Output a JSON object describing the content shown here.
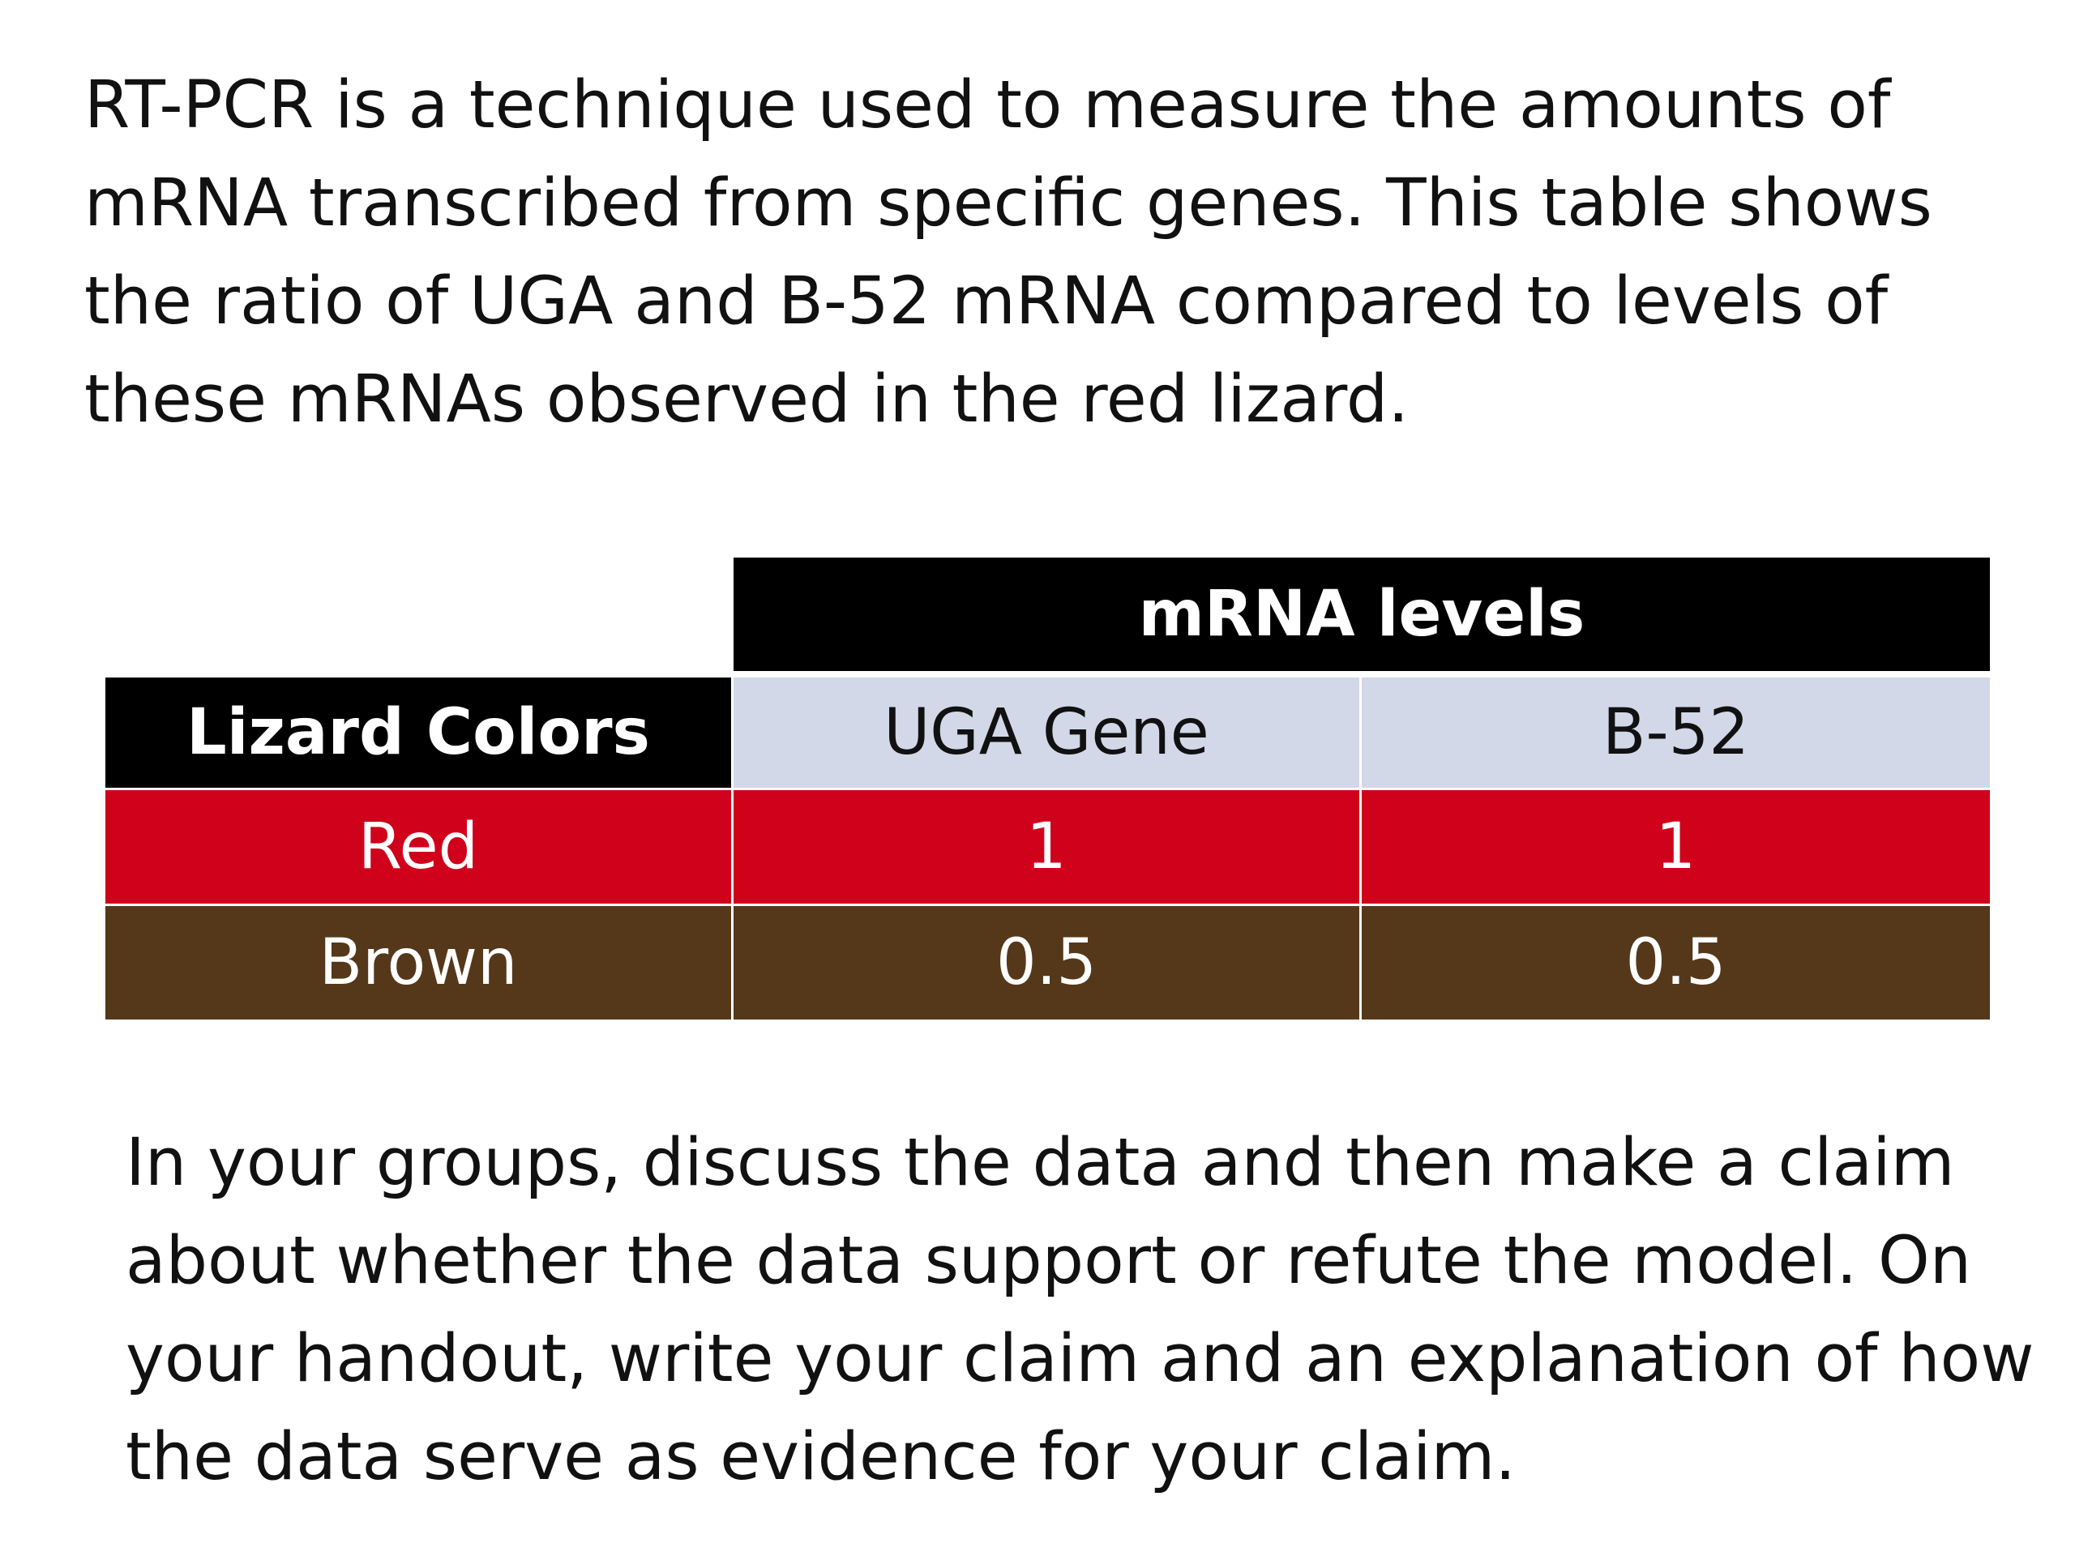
{
  "intro_text": "RT-PCR is a technique used to measure the amounts of mRNA transcribed from specific genes. This table shows the ratio of UGA and B-52 mRNA compared to levels of these mRNAs observed in the red lizard.",
  "table": {
    "group_header": "mRNA levels",
    "row_label_header": "Lizard Colors",
    "column_headers": [
      "UGA Gene",
      "B-52"
    ],
    "rows": [
      {
        "label": "Red",
        "values": [
          "1",
          "1"
        ]
      },
      {
        "label": "Brown",
        "values": [
          "0.5",
          "0.5"
        ]
      }
    ]
  },
  "outro_text": "In your groups, discuss the data and then make a claim about whether the data support or refute the model. On your handout, write your claim and an explanation of how the data serve as evidence for your claim.",
  "colors": {
    "header_black": "#000000",
    "column_header_bg": "#d2d8e8",
    "red_row": "#d0021b",
    "brown_row": "#55381a"
  }
}
